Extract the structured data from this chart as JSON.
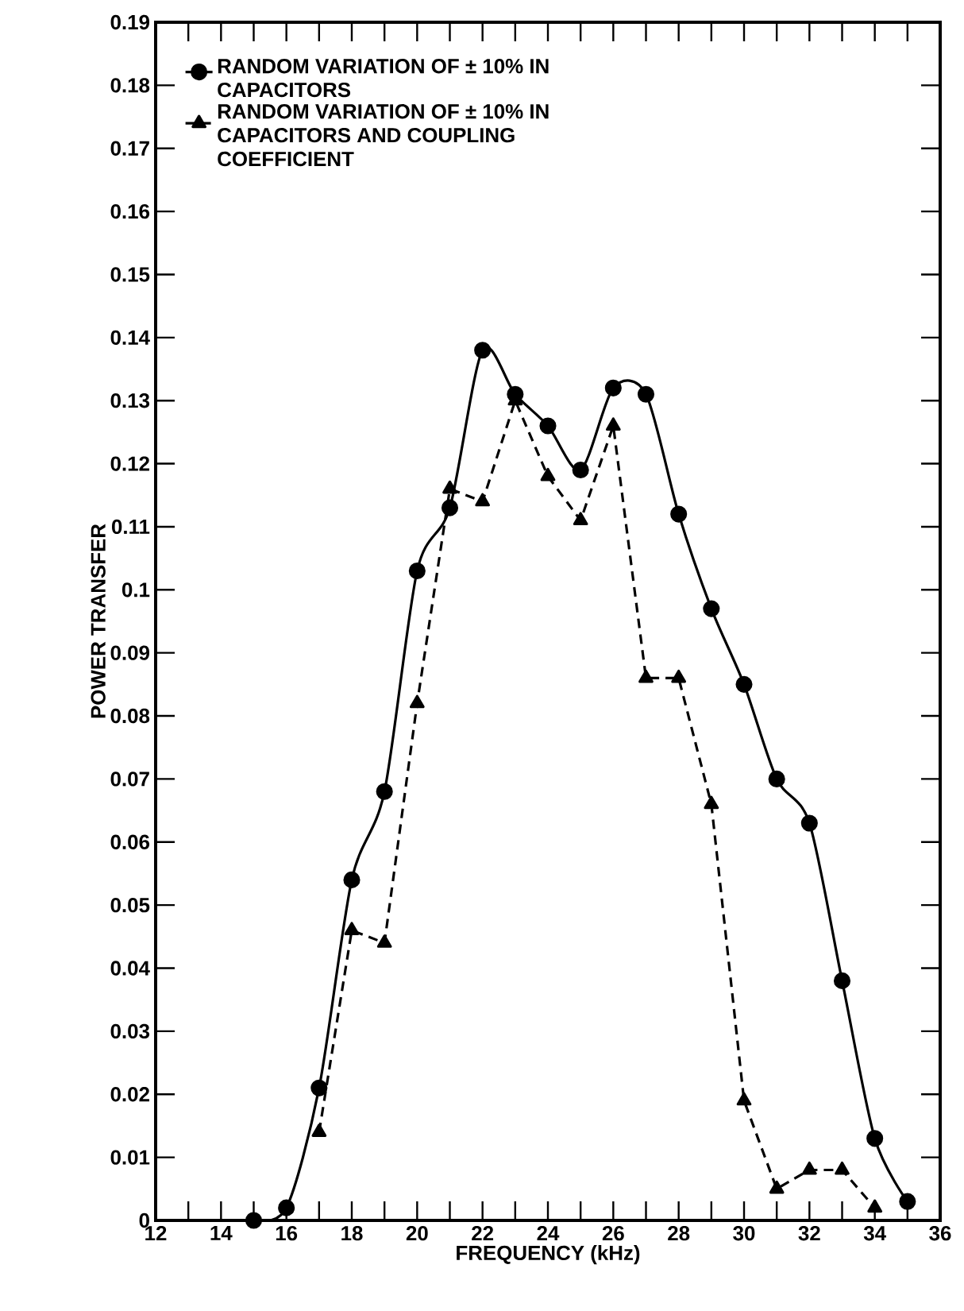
{
  "chart_data": {
    "type": "line",
    "xlabel": "FREQUENCY (kHz)",
    "ylabel": "POWER TRANSFER",
    "xlim": [
      12,
      36
    ],
    "xticks": [
      12,
      14,
      16,
      18,
      20,
      22,
      24,
      26,
      28,
      30,
      32,
      34,
      36
    ],
    "ylim": [
      0,
      0.19
    ],
    "yticks": [
      0,
      0.01,
      0.02,
      0.03,
      0.04,
      0.05,
      0.06,
      0.07,
      0.08,
      0.09,
      0.1,
      0.11,
      0.12,
      0.13,
      0.14,
      0.15,
      0.16,
      0.17,
      0.18,
      0.19
    ],
    "legend": "top left",
    "series": [
      {
        "name": "RANDOM VARIATION OF ± 10% IN CAPACITORS",
        "color": "#000000",
        "marker": "circle",
        "line_style": "solid",
        "x": [
          15,
          16,
          17,
          18,
          19,
          20,
          21,
          22,
          23,
          24,
          25,
          26,
          27,
          28,
          29,
          30,
          31,
          32,
          33,
          34,
          35
        ],
        "values": [
          0.0,
          0.002,
          0.021,
          0.054,
          0.068,
          0.103,
          0.113,
          0.138,
          0.131,
          0.126,
          0.119,
          0.132,
          0.131,
          0.112,
          0.097,
          0.085,
          0.07,
          0.063,
          0.038,
          0.013,
          0.003
        ]
      },
      {
        "name": "RANDOM VARIATION OF ± 10% IN CAPACITORS AND COUPLING COEFFICIENT",
        "color": "#000000",
        "marker": "triangle",
        "line_style": "dashed",
        "x": [
          17,
          18,
          19,
          20,
          21,
          22,
          23,
          24,
          25,
          26,
          27,
          28,
          29,
          30,
          31,
          32,
          33,
          34
        ],
        "values": [
          0.014,
          0.046,
          0.044,
          0.082,
          0.116,
          0.114,
          0.13,
          0.118,
          0.111,
          0.126,
          0.086,
          0.086,
          0.066,
          0.019,
          0.005,
          0.008,
          0.008,
          0.002
        ]
      }
    ]
  }
}
